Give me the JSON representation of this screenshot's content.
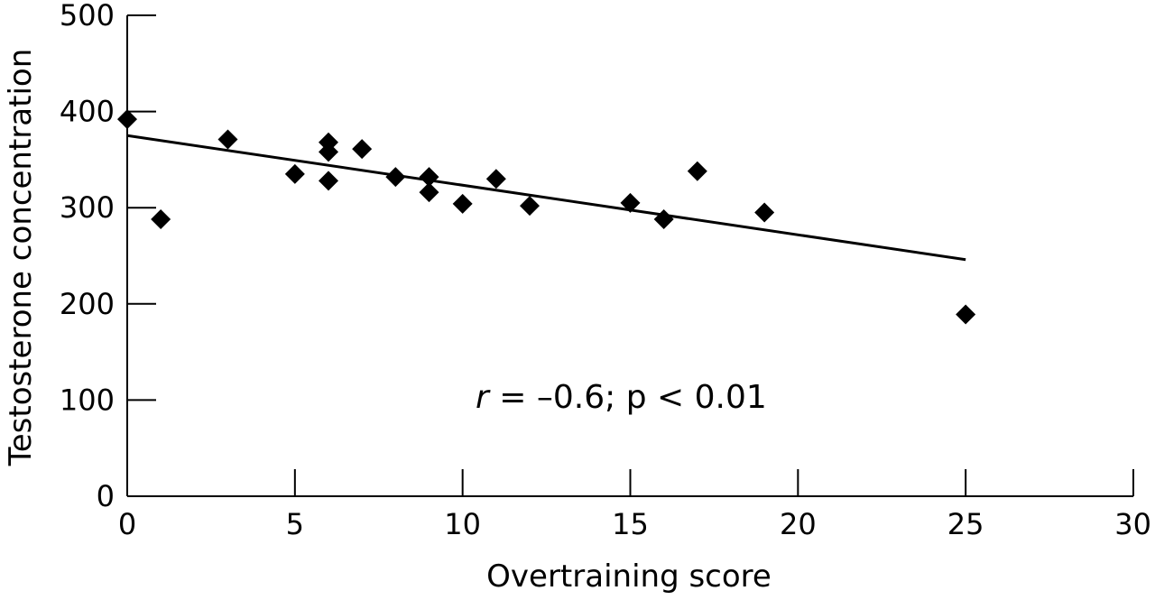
{
  "chart_data": {
    "type": "scatter",
    "xlabel": "Overtraining score",
    "ylabel": "Testosterone concentration",
    "xlim": [
      0,
      30
    ],
    "ylim": [
      0,
      500
    ],
    "xticks": [
      "0",
      "5",
      "10",
      "15",
      "20",
      "25",
      "30"
    ],
    "yticks": [
      "0",
      "100",
      "200",
      "300",
      "400",
      "500"
    ],
    "grid": false,
    "series": [
      {
        "marker": "diamond",
        "color": "#000000",
        "points": [
          {
            "x": 0,
            "y": 392
          },
          {
            "x": 1,
            "y": 288
          },
          {
            "x": 3,
            "y": 371
          },
          {
            "x": 5,
            "y": 335
          },
          {
            "x": 6,
            "y": 368
          },
          {
            "x": 6,
            "y": 358
          },
          {
            "x": 6,
            "y": 328
          },
          {
            "x": 7,
            "y": 361
          },
          {
            "x": 8,
            "y": 332
          },
          {
            "x": 9,
            "y": 332
          },
          {
            "x": 9,
            "y": 316
          },
          {
            "x": 10,
            "y": 304
          },
          {
            "x": 11,
            "y": 330
          },
          {
            "x": 12,
            "y": 302
          },
          {
            "x": 15,
            "y": 305
          },
          {
            "x": 16,
            "y": 288
          },
          {
            "x": 17,
            "y": 338
          },
          {
            "x": 19,
            "y": 295
          },
          {
            "x": 25,
            "y": 189
          }
        ]
      }
    ],
    "trendline": {
      "x": [
        0,
        25
      ],
      "y": [
        375,
        246
      ],
      "color": "#000000"
    },
    "annotation": {
      "r_symbol": "r",
      "rest": " = –0.6; p < 0.01"
    }
  }
}
